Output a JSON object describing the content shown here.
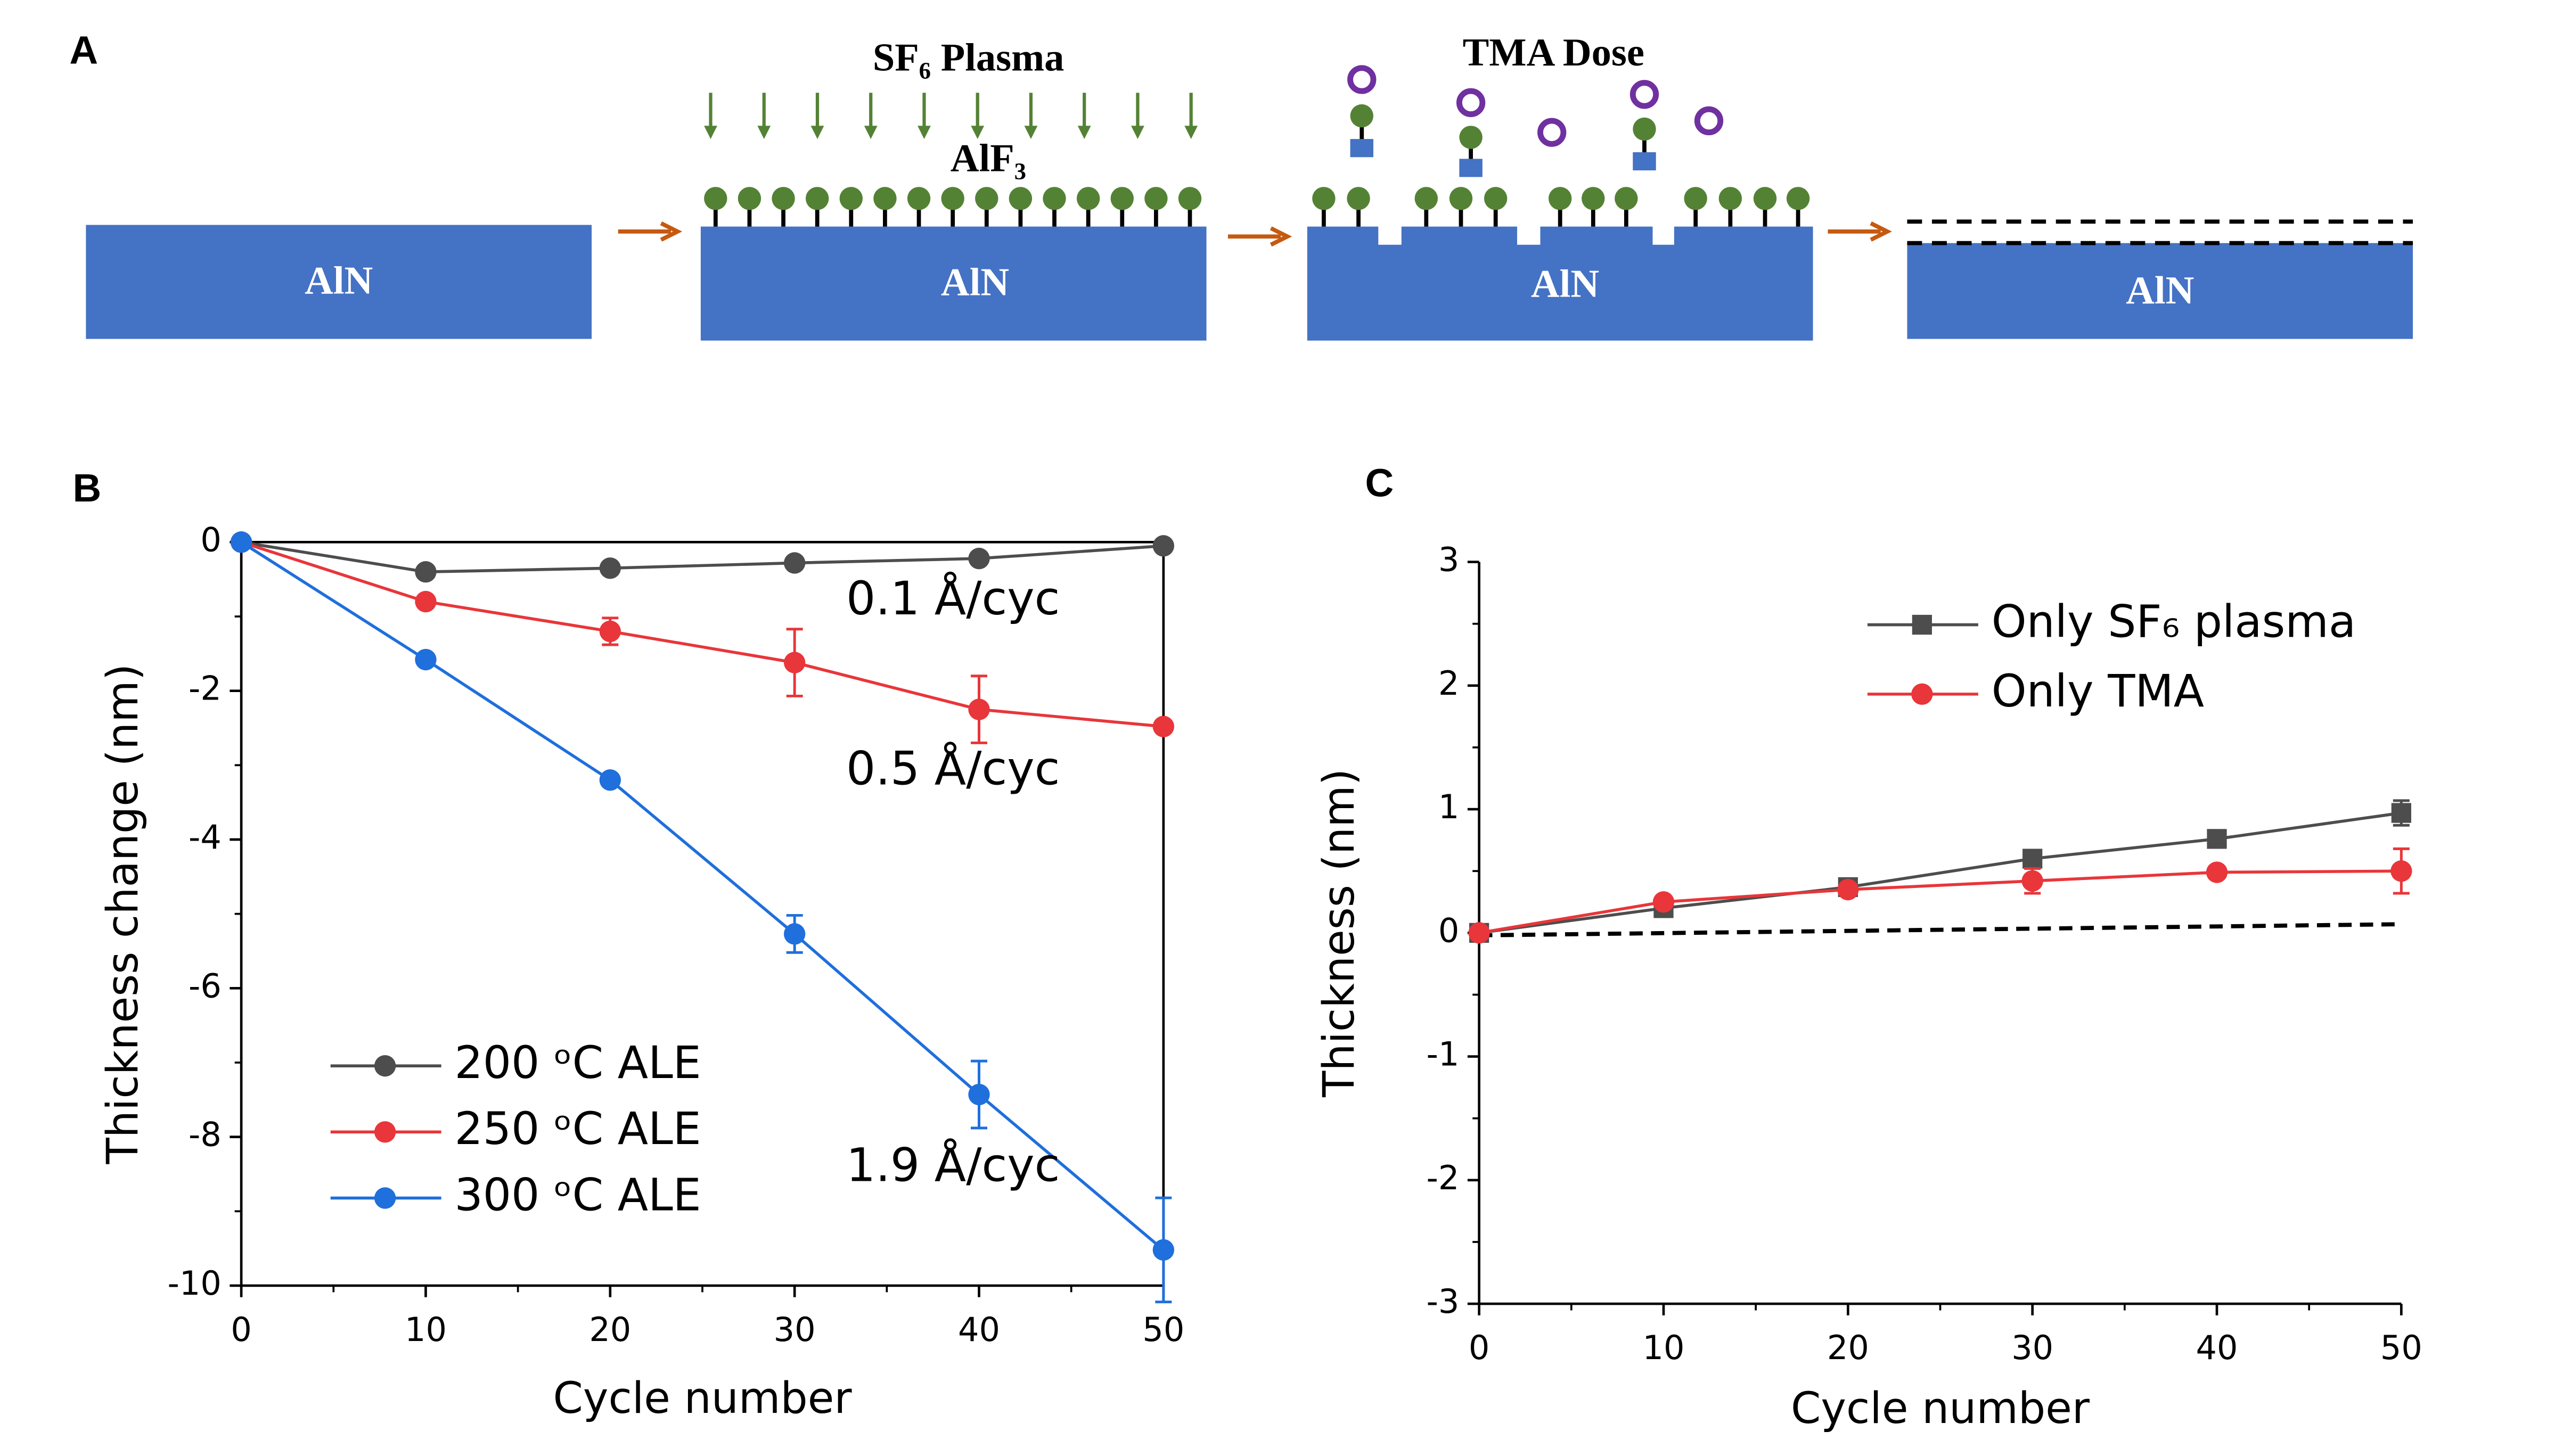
{
  "panel_labels": [
    "A",
    "B",
    "C"
  ],
  "diagram": {
    "substrate_labels": [
      "AlN",
      "AlN",
      "AlN",
      "AlN"
    ],
    "plasma_label": "SF₆  Plasma",
    "layer_label": "AlF₃",
    "dose_label": "TMA Dose"
  },
  "chart_data": [
    {
      "type": "line",
      "xlabel": "Cycle number",
      "ylabel": "Thickness change (nm)",
      "x": [
        0,
        10,
        20,
        30,
        40,
        50
      ],
      "xlim": [
        0,
        50
      ],
      "xticks": [
        0,
        10,
        20,
        30,
        40,
        50
      ],
      "ylim": [
        -10,
        0
      ],
      "yticks": [
        0,
        -2,
        -4,
        -6,
        -8,
        -10
      ],
      "box": true,
      "legend": "lower left",
      "series": [
        {
          "name": "200 ᵒC ALE",
          "color": "#4d4d4d",
          "marker": "circle",
          "values": [
            0,
            -0.4,
            -0.35,
            -0.28,
            -0.22,
            -0.05
          ],
          "errors": [
            0,
            0.03,
            0.03,
            0.03,
            0.03,
            0.03
          ]
        },
        {
          "name": "250 ᵒC ALE",
          "color": "#e8363a",
          "marker": "circle",
          "values": [
            0,
            -0.8,
            -1.2,
            -1.62,
            -2.25,
            -2.48
          ],
          "errors": [
            0,
            0.05,
            0.18,
            0.45,
            0.45,
            0.05
          ]
        },
        {
          "name": "300 ᵒC ALE",
          "color": "#1f6fdc",
          "marker": "circle",
          "values": [
            0,
            -1.58,
            -3.2,
            -5.27,
            -7.43,
            -9.52
          ],
          "errors": [
            0,
            0.05,
            0.05,
            0.25,
            0.45,
            0.7
          ]
        }
      ],
      "annotations": [
        "0.1 Å/cyc",
        "0.5 Å/cyc",
        "1.9 Å/cyc"
      ]
    },
    {
      "type": "line",
      "xlabel": "Cycle number",
      "ylabel": "Thickness (nm)",
      "x": [
        0,
        10,
        20,
        30,
        40,
        50
      ],
      "xlim": [
        0,
        50
      ],
      "xticks": [
        0,
        10,
        20,
        30,
        40,
        50
      ],
      "ylim": [
        -3,
        3
      ],
      "yticks": [
        3,
        2,
        1,
        0,
        -1,
        -2,
        -3
      ],
      "box": false,
      "legend": "upper right",
      "series": [
        {
          "name": "Only SF₆ plasma",
          "color": "#4d4d4d",
          "marker": "square",
          "values": [
            0,
            0.2,
            0.37,
            0.6,
            0.76,
            0.97
          ],
          "errors": [
            0,
            0.02,
            0.02,
            0.03,
            0.03,
            0.1
          ]
        },
        {
          "name": "Only TMA",
          "color": "#e8363a",
          "marker": "circle",
          "values": [
            0,
            0.25,
            0.35,
            0.42,
            0.49,
            0.5
          ],
          "errors": [
            0,
            0.02,
            0.03,
            0.1,
            0.03,
            0.18
          ]
        }
      ],
      "reference_line": {
        "x": [
          0,
          50
        ],
        "values": [
          -0.02,
          0.07
        ],
        "color": "#000000"
      }
    }
  ]
}
